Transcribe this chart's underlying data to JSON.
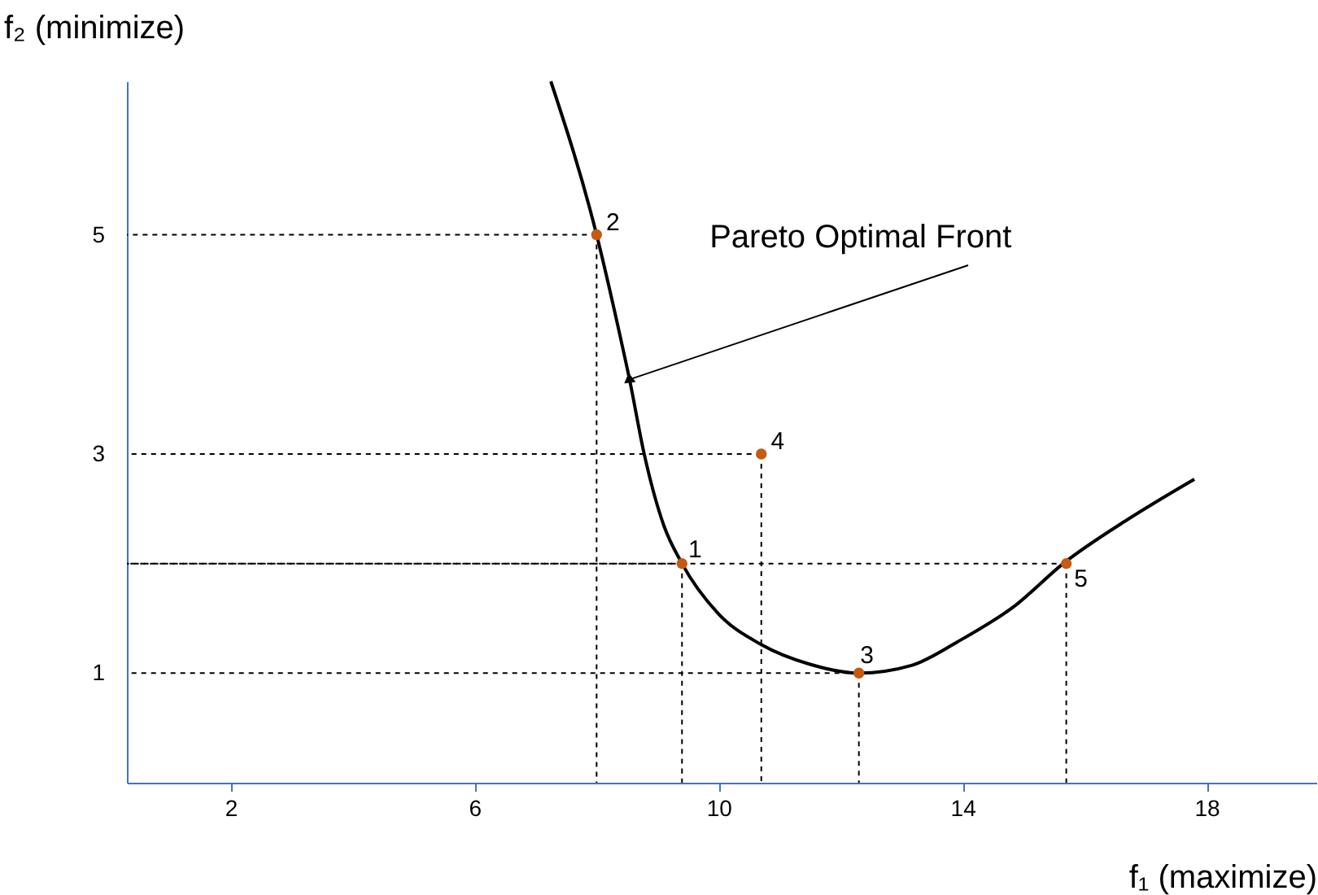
{
  "chart_data": {
    "type": "scatter",
    "xlabel": "f₁ (maximize)",
    "ylabel": "f₂ (minimize)",
    "xlim": [
      0.3,
      19.8
    ],
    "ylim": [
      0,
      6.4
    ],
    "xticks": [
      2,
      6,
      10,
      14,
      18
    ],
    "yticks": [
      1,
      3,
      5
    ],
    "grid": false,
    "series": [
      {
        "type": "line",
        "color": "#000000",
        "marker": "none",
        "line_style": "solid",
        "x": [
          7.25,
          8.0,
          8.36,
          8.54,
          8.78,
          9.1,
          9.4,
          10.0,
          10.7,
          11.5,
          12.3,
          13.16,
          13.93,
          14.87,
          15.65,
          16.7,
          17.8
        ],
        "values": [
          6.4,
          5,
          4.14,
          3.68,
          3,
          2.35,
          2,
          1.54,
          1.26,
          1.08,
          1.0,
          1.07,
          1.29,
          1.62,
          2,
          2.4,
          2.77
        ]
      },
      {
        "color": "#c55a11",
        "marker": "circle",
        "x": [
          9.4,
          8.0,
          12.3,
          10.7,
          15.7
        ],
        "values": [
          2,
          5,
          1,
          3,
          2
        ]
      }
    ],
    "annotations": [
      {
        "text": "1",
        "x": 9.4,
        "y": 2
      },
      {
        "text": "2",
        "x": 8.0,
        "y": 5
      },
      {
        "text": "3",
        "x": 12.3,
        "y": 1
      },
      {
        "text": "4",
        "x": 10.7,
        "y": 3
      },
      {
        "text": "5",
        "x": 15.7,
        "y": 2
      },
      {
        "text": "Pareto Optimal Front",
        "x": 8.54,
        "y": 3.68
      }
    ]
  }
}
